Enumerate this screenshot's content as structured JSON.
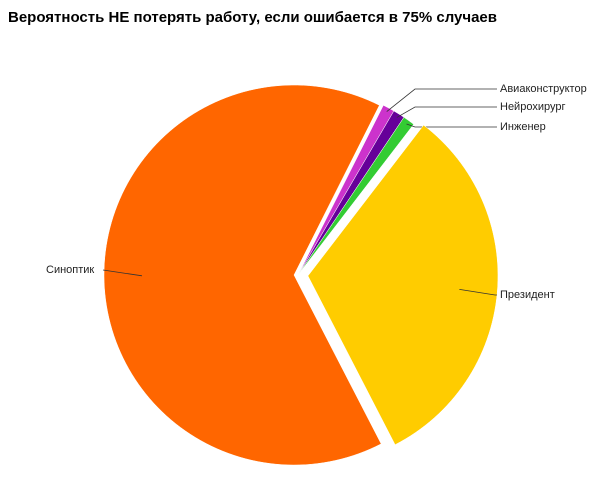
{
  "chart_data": {
    "type": "pie",
    "title": "Вероятность НЕ потерять работу, если ошибается в 75% случаев",
    "categories": [
      "Синоптик",
      "Авиаконструктор",
      "Нейрохирург",
      "Инженер",
      "Президент"
    ],
    "values": [
      65,
      1,
      1,
      1,
      32
    ],
    "colors": [
      "#ff6600",
      "#cc33cc",
      "#660099",
      "#33cc33",
      "#ffcc00"
    ]
  }
}
